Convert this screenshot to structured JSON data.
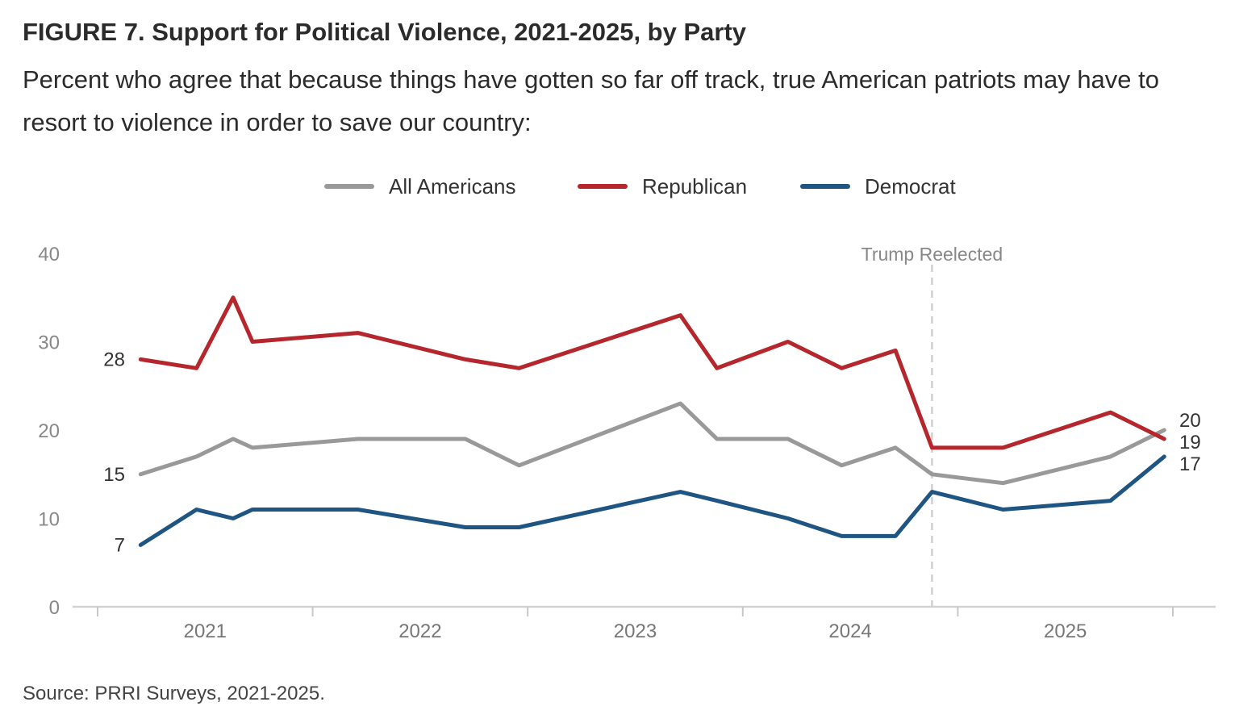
{
  "header": {
    "title": "FIGURE 7.  Support for Political Violence, 2021-2025, by Party",
    "subtitle": "Percent who agree that because things have gotten so far off track, true American patriots may have to resort to violence in order to save our country:"
  },
  "footer": {
    "source": "Source: PRRI Surveys, 2021-2025."
  },
  "chart_data": {
    "type": "line",
    "title": "FIGURE 7.  Support for Political Violence, 2021-2025, by Party",
    "subtitle": "Percent who agree that because things have gotten so far off track, true American patriots may have to resort to violence in order to save our country:",
    "xlabel": "",
    "ylabel": "",
    "ylim": [
      0,
      40
    ],
    "xlim": [
      2020.5,
      2025.5
    ],
    "yticks": [
      0,
      10,
      20,
      30,
      40
    ],
    "xtick_labels": [
      "2021",
      "2022",
      "2023",
      "2024",
      "2025"
    ],
    "grid": false,
    "legend": "top-center",
    "annotation": {
      "label": "Trump Reelected",
      "x": 2024.38
    },
    "series": [
      {
        "name": "All Americans",
        "color": "#999999",
        "x": [
          2020.7,
          2020.96,
          2021.13,
          2021.22,
          2021.71,
          2022.21,
          2022.46,
          2023.21,
          2023.38,
          2023.71,
          2023.96,
          2024.21,
          2024.38,
          2024.71,
          2025.21,
          2025.46
        ],
        "values": [
          15,
          17,
          19,
          18,
          19,
          19,
          16,
          23,
          19,
          19,
          16,
          18,
          15,
          14,
          17,
          20
        ],
        "start_label": "15",
        "end_label": "20"
      },
      {
        "name": "Republican",
        "color": "#b5272d",
        "x": [
          2020.7,
          2020.96,
          2021.13,
          2021.22,
          2021.71,
          2022.21,
          2022.46,
          2023.21,
          2023.38,
          2023.71,
          2023.96,
          2024.21,
          2024.38,
          2024.71,
          2025.21,
          2025.46
        ],
        "values": [
          28,
          27,
          35,
          30,
          31,
          28,
          27,
          33,
          27,
          30,
          27,
          29,
          18,
          18,
          22,
          19
        ],
        "start_label": "28",
        "end_label": "19"
      },
      {
        "name": "Democrat",
        "color": "#1f5582",
        "x": [
          2020.7,
          2020.96,
          2021.13,
          2021.22,
          2021.71,
          2022.21,
          2022.46,
          2023.21,
          2023.38,
          2023.71,
          2023.96,
          2024.21,
          2024.38,
          2024.71,
          2025.21,
          2025.46
        ],
        "values": [
          7,
          11,
          10,
          11,
          11,
          9,
          9,
          13,
          12,
          10,
          8,
          8,
          13,
          11,
          12,
          17
        ],
        "start_label": "7",
        "end_label": "17"
      }
    ]
  }
}
